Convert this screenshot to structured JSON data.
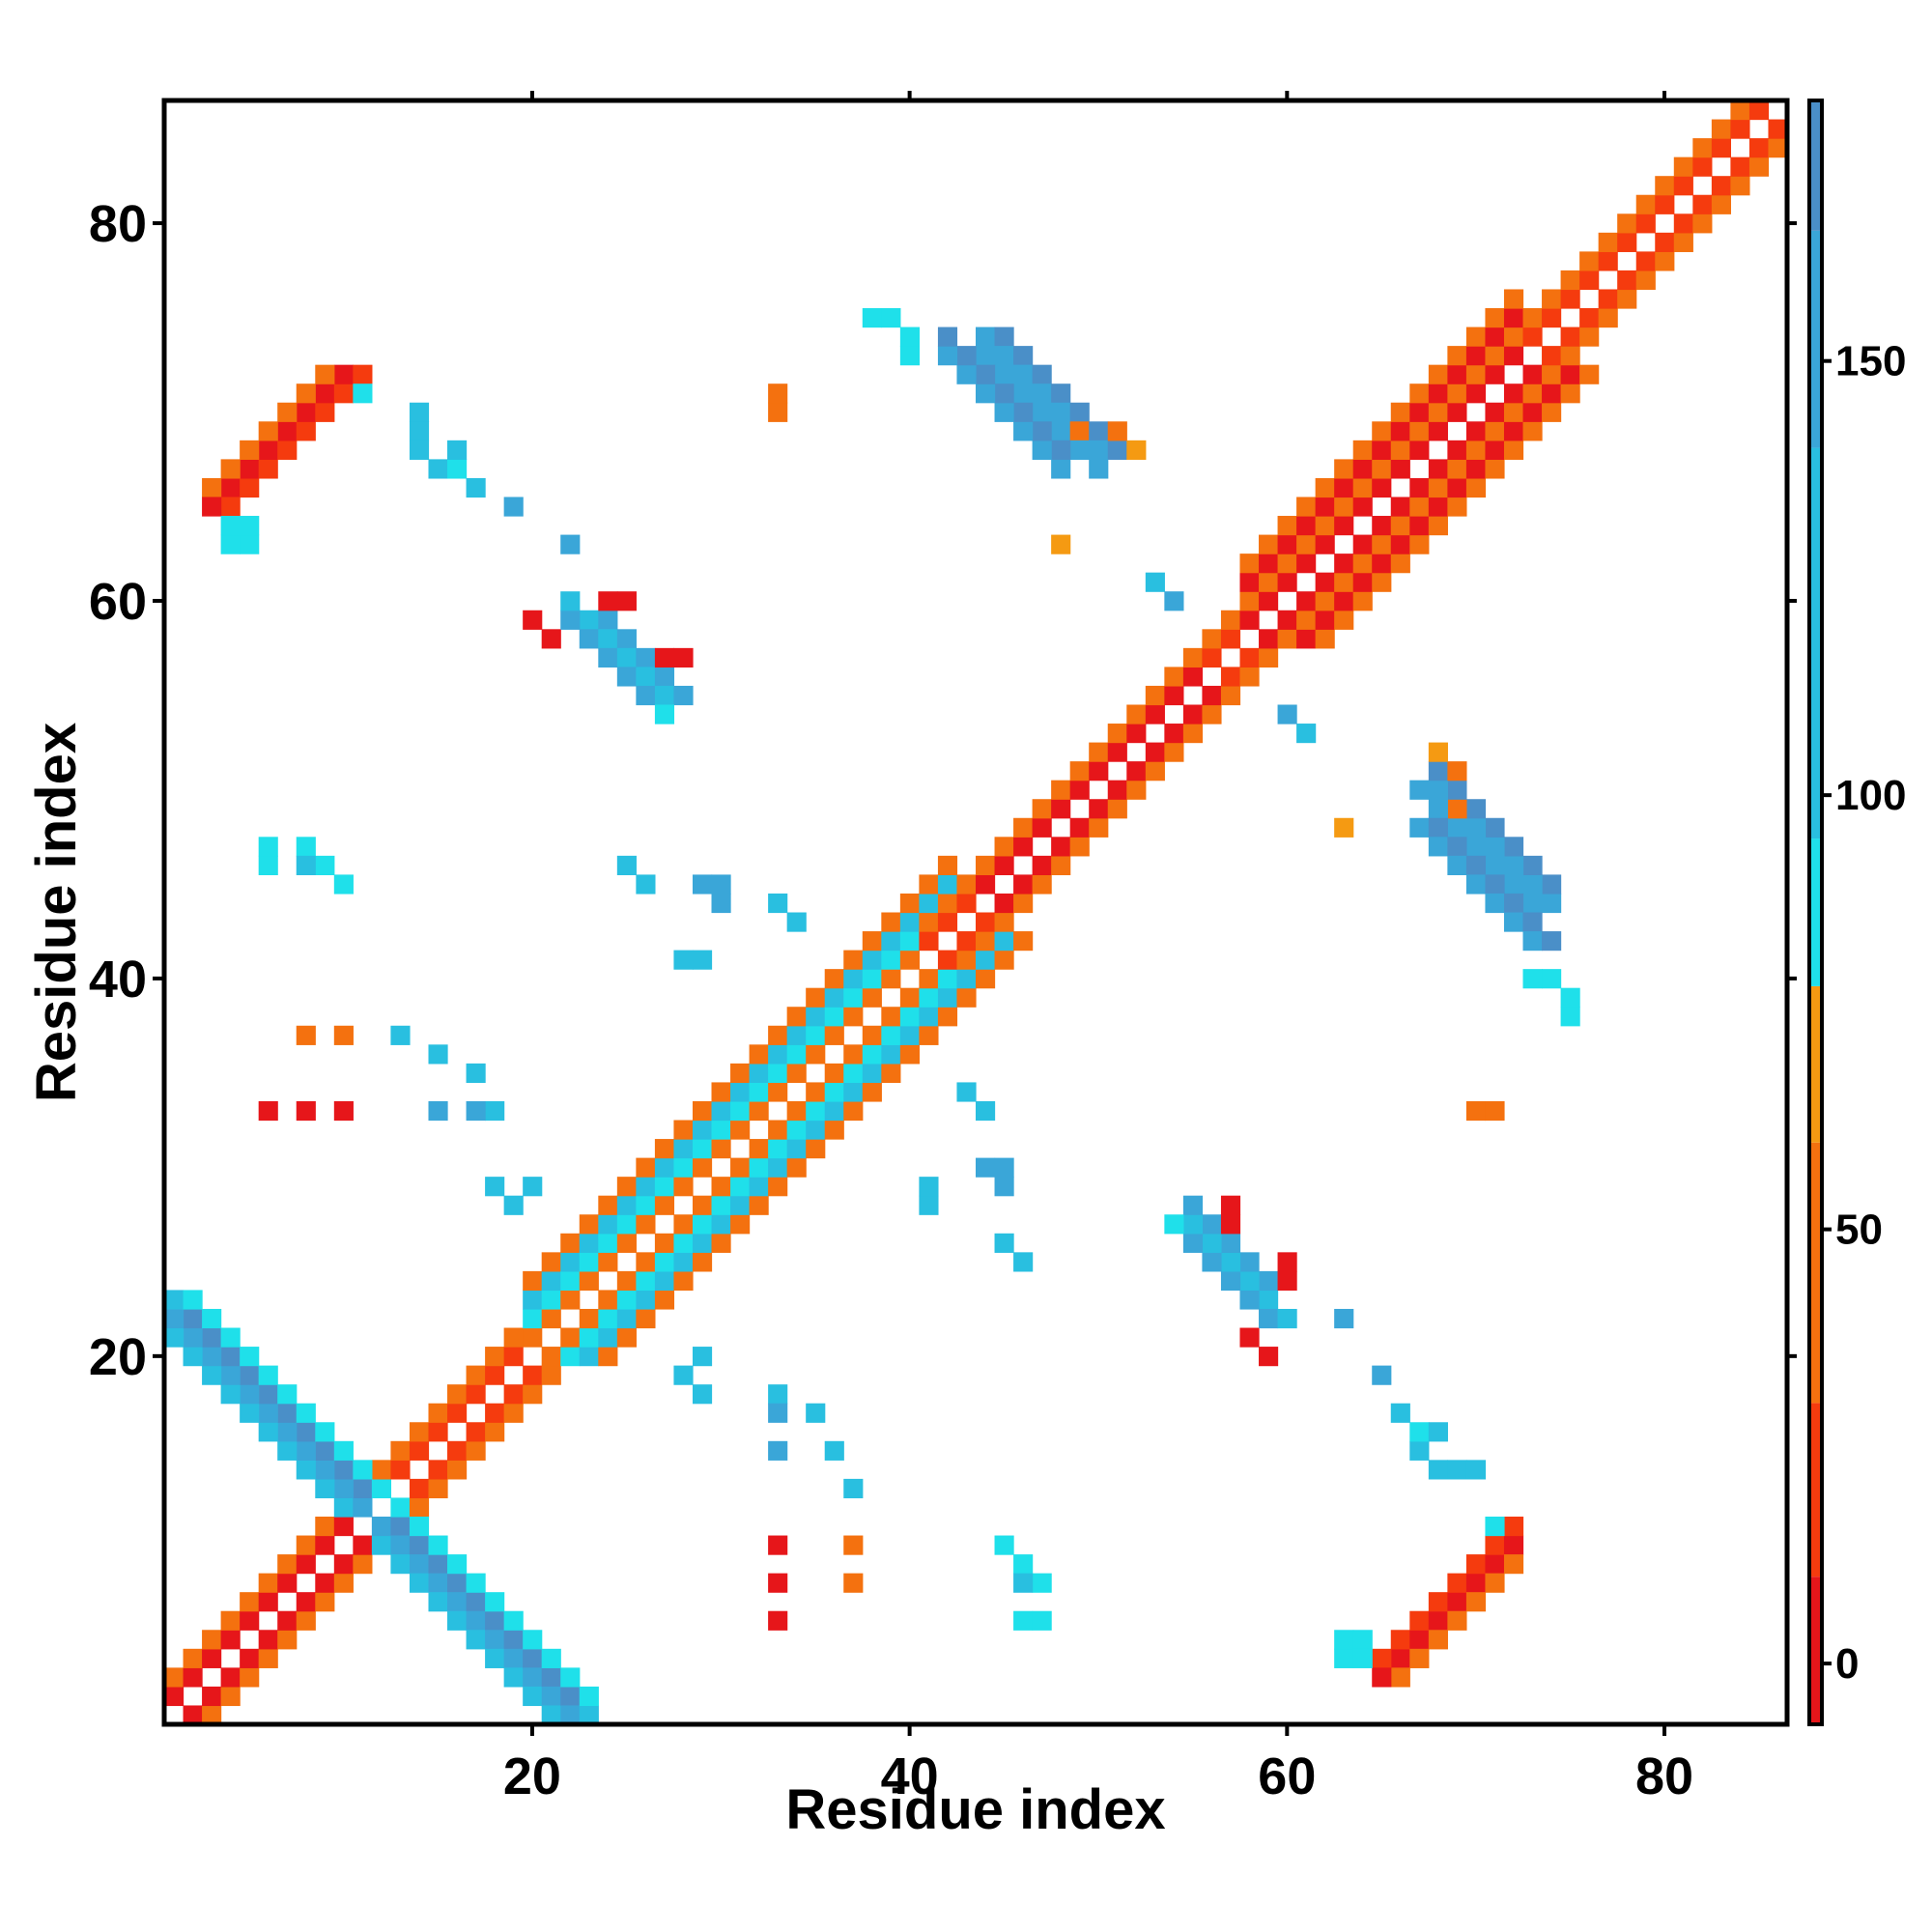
{
  "chart_data": {
    "type": "heatmap",
    "title": "",
    "xlabel": "Residue index",
    "ylabel": "Residue index",
    "xlim": [
      1,
      86
    ],
    "ylim": [
      1,
      86
    ],
    "x_ticks": [
      20,
      40,
      60,
      80
    ],
    "y_ticks": [
      20,
      40,
      60,
      80
    ],
    "grid": false,
    "colorbar": {
      "ticks": [
        0,
        50,
        100,
        150
      ],
      "range": [
        -7,
        180
      ],
      "scale": [
        {
          "from": -7,
          "to": 10,
          "color": "#e6161a"
        },
        {
          "from": 10,
          "to": 30,
          "color": "#f53b0e"
        },
        {
          "from": 30,
          "to": 60,
          "color": "#f4710f"
        },
        {
          "from": 60,
          "to": 78,
          "color": "#f59a12"
        },
        {
          "from": 78,
          "to": 95,
          "color": "#1fe0ea"
        },
        {
          "from": 95,
          "to": 140,
          "color": "#29bfe0"
        },
        {
          "from": 140,
          "to": 165,
          "color": "#3aa6d8"
        },
        {
          "from": 165,
          "to": 180,
          "color": "#4a8fc8"
        }
      ]
    },
    "legend": "colorbar-right",
    "note_points": "each point: [residue_x, residue_y, value]",
    "points": []
  }
}
